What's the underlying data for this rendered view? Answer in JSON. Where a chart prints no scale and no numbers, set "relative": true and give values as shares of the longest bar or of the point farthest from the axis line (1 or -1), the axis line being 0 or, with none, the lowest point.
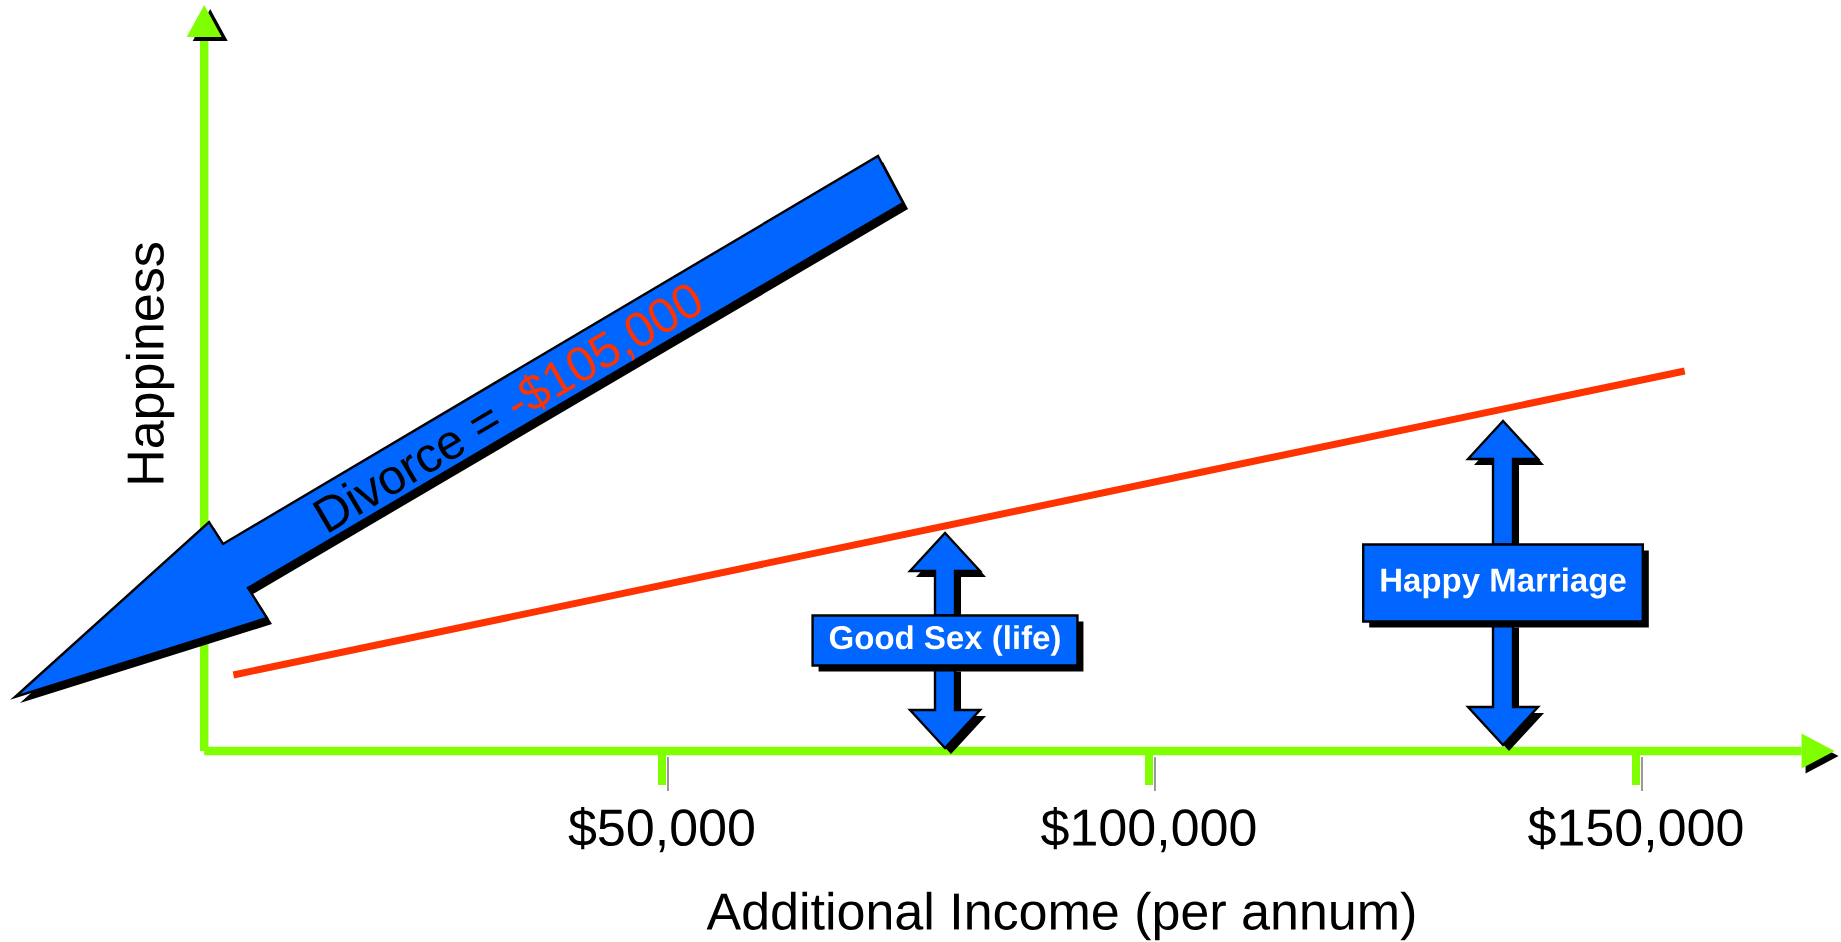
{
  "chart_data": {
    "type": "line",
    "xlabel": "Additional Income (per annum)",
    "ylabel": "Happiness",
    "x": [
      6000,
      155000
    ],
    "values": [
      0.2,
      1.0
    ],
    "color": "#ff3300",
    "relative": true,
    "xlim": [
      3000,
      167000
    ],
    "xticks": [
      {
        "value": 50000,
        "label": "$50,000"
      },
      {
        "value": 100000,
        "label": "$100,000"
      },
      {
        "value": 150000,
        "label": "$150,000"
      }
    ],
    "tick_labels": "x",
    "annotations": [
      "Divorce =",
      "-$105,000",
      "Good Sex (life)",
      "Happy Marriage"
    ]
  }
}
